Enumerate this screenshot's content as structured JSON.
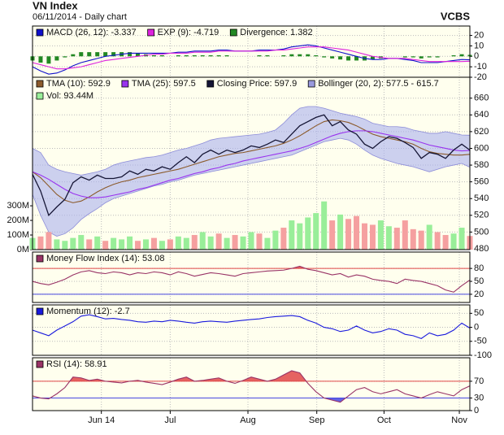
{
  "chart_data": [
    {
      "type": "line",
      "title": "VN Index",
      "subtitle": "06/11/2014 - Daily chart",
      "source": "VCBS",
      "ylim": [
        -20,
        29
      ],
      "yticks": [
        20,
        10,
        0,
        -10,
        -20
      ],
      "series": [
        {
          "name": "MACD (26, 12): -3.337",
          "color": "#1010cc",
          "kind": "line",
          "values": [
            -10,
            -14,
            -17,
            -16,
            -13,
            -9,
            -6,
            -4,
            -2,
            0,
            1,
            2,
            3,
            3,
            3,
            3,
            3,
            3,
            4,
            4,
            5,
            5,
            5,
            6,
            6,
            5,
            5,
            5,
            6,
            6,
            6,
            7,
            9,
            10,
            11,
            10,
            8,
            6,
            4,
            2,
            0,
            -2,
            -3,
            -3,
            -2,
            -2,
            -3,
            -4,
            -6,
            -6,
            -6,
            -5,
            -4,
            -3,
            -3.337
          ]
        },
        {
          "name": "EXP (9): -4.719",
          "color": "#dd22dd",
          "kind": "line",
          "values": [
            -6,
            -8,
            -10,
            -12,
            -12,
            -11,
            -10,
            -8,
            -6,
            -4,
            -3,
            -2,
            -1,
            0,
            1,
            2,
            2,
            3,
            3,
            3,
            4,
            4,
            4,
            5,
            5,
            5,
            5,
            5,
            5,
            5,
            6,
            6,
            7,
            8,
            9,
            9,
            9,
            8,
            7,
            6,
            4,
            2,
            0,
            -1,
            -2,
            -2,
            -2,
            -3,
            -4,
            -5,
            -5,
            -5,
            -5,
            -5,
            -4.719
          ]
        },
        {
          "name": "Divergence: 1.382",
          "color": "#228822",
          "kind": "bar",
          "values": [
            -4,
            -6,
            -7,
            -4,
            -1,
            2,
            4,
            4,
            4,
            4,
            4,
            4,
            4,
            3,
            2,
            1,
            1,
            0,
            1,
            1,
            1,
            1,
            1,
            1,
            1,
            0,
            0,
            0,
            1,
            1,
            0,
            1,
            2,
            2,
            2,
            1,
            -1,
            -2,
            -3,
            -4,
            -4,
            -4,
            -3,
            -2,
            0,
            0,
            -1,
            -1,
            -2,
            -1,
            -1,
            0,
            1,
            2,
            1.382
          ]
        }
      ]
    },
    {
      "type": "line",
      "ylim": [
        479,
        685
      ],
      "yticks": [
        660,
        640,
        620,
        600,
        580,
        560,
        540,
        520,
        500,
        480
      ],
      "y2lim": [
        0,
        1180
      ],
      "y2ticks": [
        {
          "value": 300,
          "label": "300M"
        },
        {
          "value": 200,
          "label": "200M"
        },
        {
          "value": 100,
          "label": "100M"
        },
        {
          "value": 0,
          "label": "0M"
        }
      ],
      "series": [
        {
          "name": "TMA (10): 592.9",
          "color": "#8b5a2b",
          "kind": "line",
          "values": [
            572,
            565,
            555,
            545,
            538,
            535,
            537,
            542,
            548,
            553,
            557,
            560,
            562,
            565,
            567,
            569,
            571,
            573,
            575,
            578,
            581,
            584,
            587,
            590,
            592,
            594,
            595,
            597,
            599,
            601,
            603,
            606,
            610,
            615,
            621,
            627,
            632,
            634,
            633,
            631,
            627,
            622,
            617,
            614,
            612,
            610,
            608,
            605,
            600,
            596,
            594,
            593,
            592,
            592,
            592.9
          ]
        },
        {
          "name": "TMA (25): 597.5",
          "color": "#9933ee",
          "kind": "line",
          "values": [
            572,
            568,
            563,
            557,
            551,
            546,
            543,
            541,
            541,
            542,
            544,
            546,
            548,
            551,
            553,
            556,
            559,
            562,
            564,
            567,
            570,
            572,
            575,
            577,
            580,
            582,
            585,
            587,
            589,
            591,
            593,
            595,
            597,
            600,
            603,
            607,
            611,
            615,
            618,
            620,
            621,
            621,
            620,
            618,
            616,
            614,
            612,
            610,
            607,
            604,
            602,
            600,
            598,
            597,
            597.5
          ]
        },
        {
          "name": "Closing Price: 597.9",
          "color": "#151535",
          "kind": "line",
          "values": [
            569,
            549,
            520,
            530,
            539,
            559,
            566,
            562,
            568,
            564,
            564,
            566,
            573,
            569,
            575,
            573,
            578,
            575,
            583,
            590,
            583,
            593,
            598,
            593,
            598,
            595,
            598,
            603,
            601,
            605,
            610,
            607,
            617,
            627,
            632,
            637,
            640,
            627,
            632,
            622,
            617,
            605,
            600,
            608,
            614,
            612,
            607,
            601,
            588,
            595,
            593,
            588,
            598,
            605,
            597.9
          ]
        },
        {
          "name": "Bollinger (20, 2): 577.5 - 615.7",
          "color": "#aab0ee",
          "kind": "band",
          "upper": [
            600,
            595,
            580,
            575,
            572,
            570,
            568,
            570,
            572,
            575,
            580,
            583,
            585,
            587,
            589,
            590,
            592,
            595,
            598,
            600,
            603,
            606,
            610,
            612,
            613,
            614,
            615,
            616,
            617,
            619,
            622,
            630,
            640,
            648,
            650,
            650,
            648,
            645,
            642,
            640,
            638,
            635,
            630,
            628,
            626,
            626,
            625,
            622,
            620,
            618,
            618,
            620,
            618,
            616,
            615.7
          ],
          "lower": [
            545,
            520,
            500,
            495,
            498,
            505,
            515,
            522,
            528,
            535,
            540,
            543,
            546,
            549,
            552,
            555,
            557,
            560,
            562,
            565,
            568,
            570,
            572,
            574,
            576,
            578,
            580,
            582,
            584,
            586,
            588,
            590,
            592,
            596,
            600,
            604,
            608,
            610,
            612,
            610,
            605,
            598,
            592,
            588,
            585,
            582,
            580,
            578,
            575,
            572,
            575,
            578,
            580,
            582,
            577.5
          ]
        },
        {
          "name": "Vol: 93.44M",
          "color": "#99ee99",
          "down_color": "#f5a0a0",
          "kind": "bar",
          "axis": "y2",
          "values": [
            80,
            90,
            120,
            70,
            60,
            80,
            100,
            70,
            90,
            60,
            80,
            70,
            90,
            60,
            70,
            80,
            60,
            70,
            90,
            80,
            100,
            120,
            90,
            110,
            80,
            100,
            90,
            120,
            110,
            80,
            130,
            150,
            200,
            180,
            220,
            250,
            330,
            200,
            240,
            210,
            230,
            180,
            170,
            200,
            160,
            150,
            200,
            140,
            130,
            170,
            120,
            100,
            110,
            150,
            93.44
          ]
        }
      ]
    },
    {
      "type": "line",
      "ylim": [
        1,
        118
      ],
      "yticks": [
        80,
        50,
        20
      ],
      "levels": [
        {
          "value": 80,
          "color": "#e04848"
        },
        {
          "value": 20,
          "color": "#4848e0"
        }
      ],
      "series": [
        {
          "name": "Money Flow Index (14): 53.08",
          "color": "#993366",
          "kind": "line",
          "values": [
            50,
            45,
            42,
            48,
            55,
            65,
            72,
            75,
            70,
            68,
            72,
            70,
            65,
            70,
            68,
            72,
            70,
            65,
            72,
            68,
            62,
            66,
            70,
            68,
            65,
            62,
            68,
            70,
            72,
            74,
            75,
            76,
            80,
            85,
            78,
            75,
            70,
            65,
            68,
            60,
            65,
            62,
            55,
            52,
            50,
            45,
            55,
            52,
            50,
            45,
            40,
            30,
            25,
            40,
            53.08
          ]
        }
      ]
    },
    {
      "type": "line",
      "ylim": [
        -100,
        80
      ],
      "yticks": [
        50,
        0,
        -50,
        -100
      ],
      "series": [
        {
          "name": "Momentum (12): -2.7",
          "color": "#1a1add",
          "kind": "line",
          "values": [
            -10,
            -20,
            -30,
            -10,
            5,
            20,
            40,
            45,
            38,
            30,
            32,
            28,
            25,
            20,
            18,
            22,
            20,
            25,
            22,
            18,
            15,
            20,
            22,
            20,
            18,
            22,
            25,
            28,
            30,
            35,
            38,
            40,
            42,
            38,
            25,
            15,
            0,
            -5,
            -15,
            -10,
            5,
            -10,
            -20,
            -15,
            -5,
            -10,
            -25,
            -30,
            -40,
            -20,
            -30,
            -25,
            -10,
            15,
            -2.7
          ]
        }
      ]
    },
    {
      "type": "line",
      "ylim": [
        0,
        126
      ],
      "yticks": [
        70,
        30,
        0
      ],
      "levels": [
        {
          "value": 70,
          "color": "#e04848"
        },
        {
          "value": 30,
          "color": "#4848e0"
        }
      ],
      "xlim": [
        0,
        54
      ],
      "xticks": [
        {
          "value": 8.5,
          "label": "Jun 14"
        },
        {
          "value": 17,
          "label": "Jul"
        },
        {
          "value": 26.6,
          "label": "Aug"
        },
        {
          "value": 35.1,
          "label": "Sep"
        },
        {
          "value": 43.4,
          "label": "Oct"
        },
        {
          "value": 52.7,
          "label": "Nov"
        }
      ],
      "series": [
        {
          "name": "RSI (14): 58.91",
          "color": "#993366",
          "kind": "line",
          "values": [
            35,
            30,
            28,
            40,
            55,
            80,
            78,
            72,
            75,
            70,
            68,
            66,
            70,
            72,
            68,
            65,
            62,
            68,
            75,
            80,
            70,
            72,
            75,
            78,
            70,
            65,
            72,
            80,
            75,
            70,
            75,
            85,
            95,
            90,
            65,
            45,
            30,
            25,
            20,
            35,
            50,
            55,
            45,
            40,
            45,
            50,
            40,
            35,
            30,
            38,
            45,
            40,
            35,
            50,
            58.91
          ]
        }
      ]
    }
  ]
}
